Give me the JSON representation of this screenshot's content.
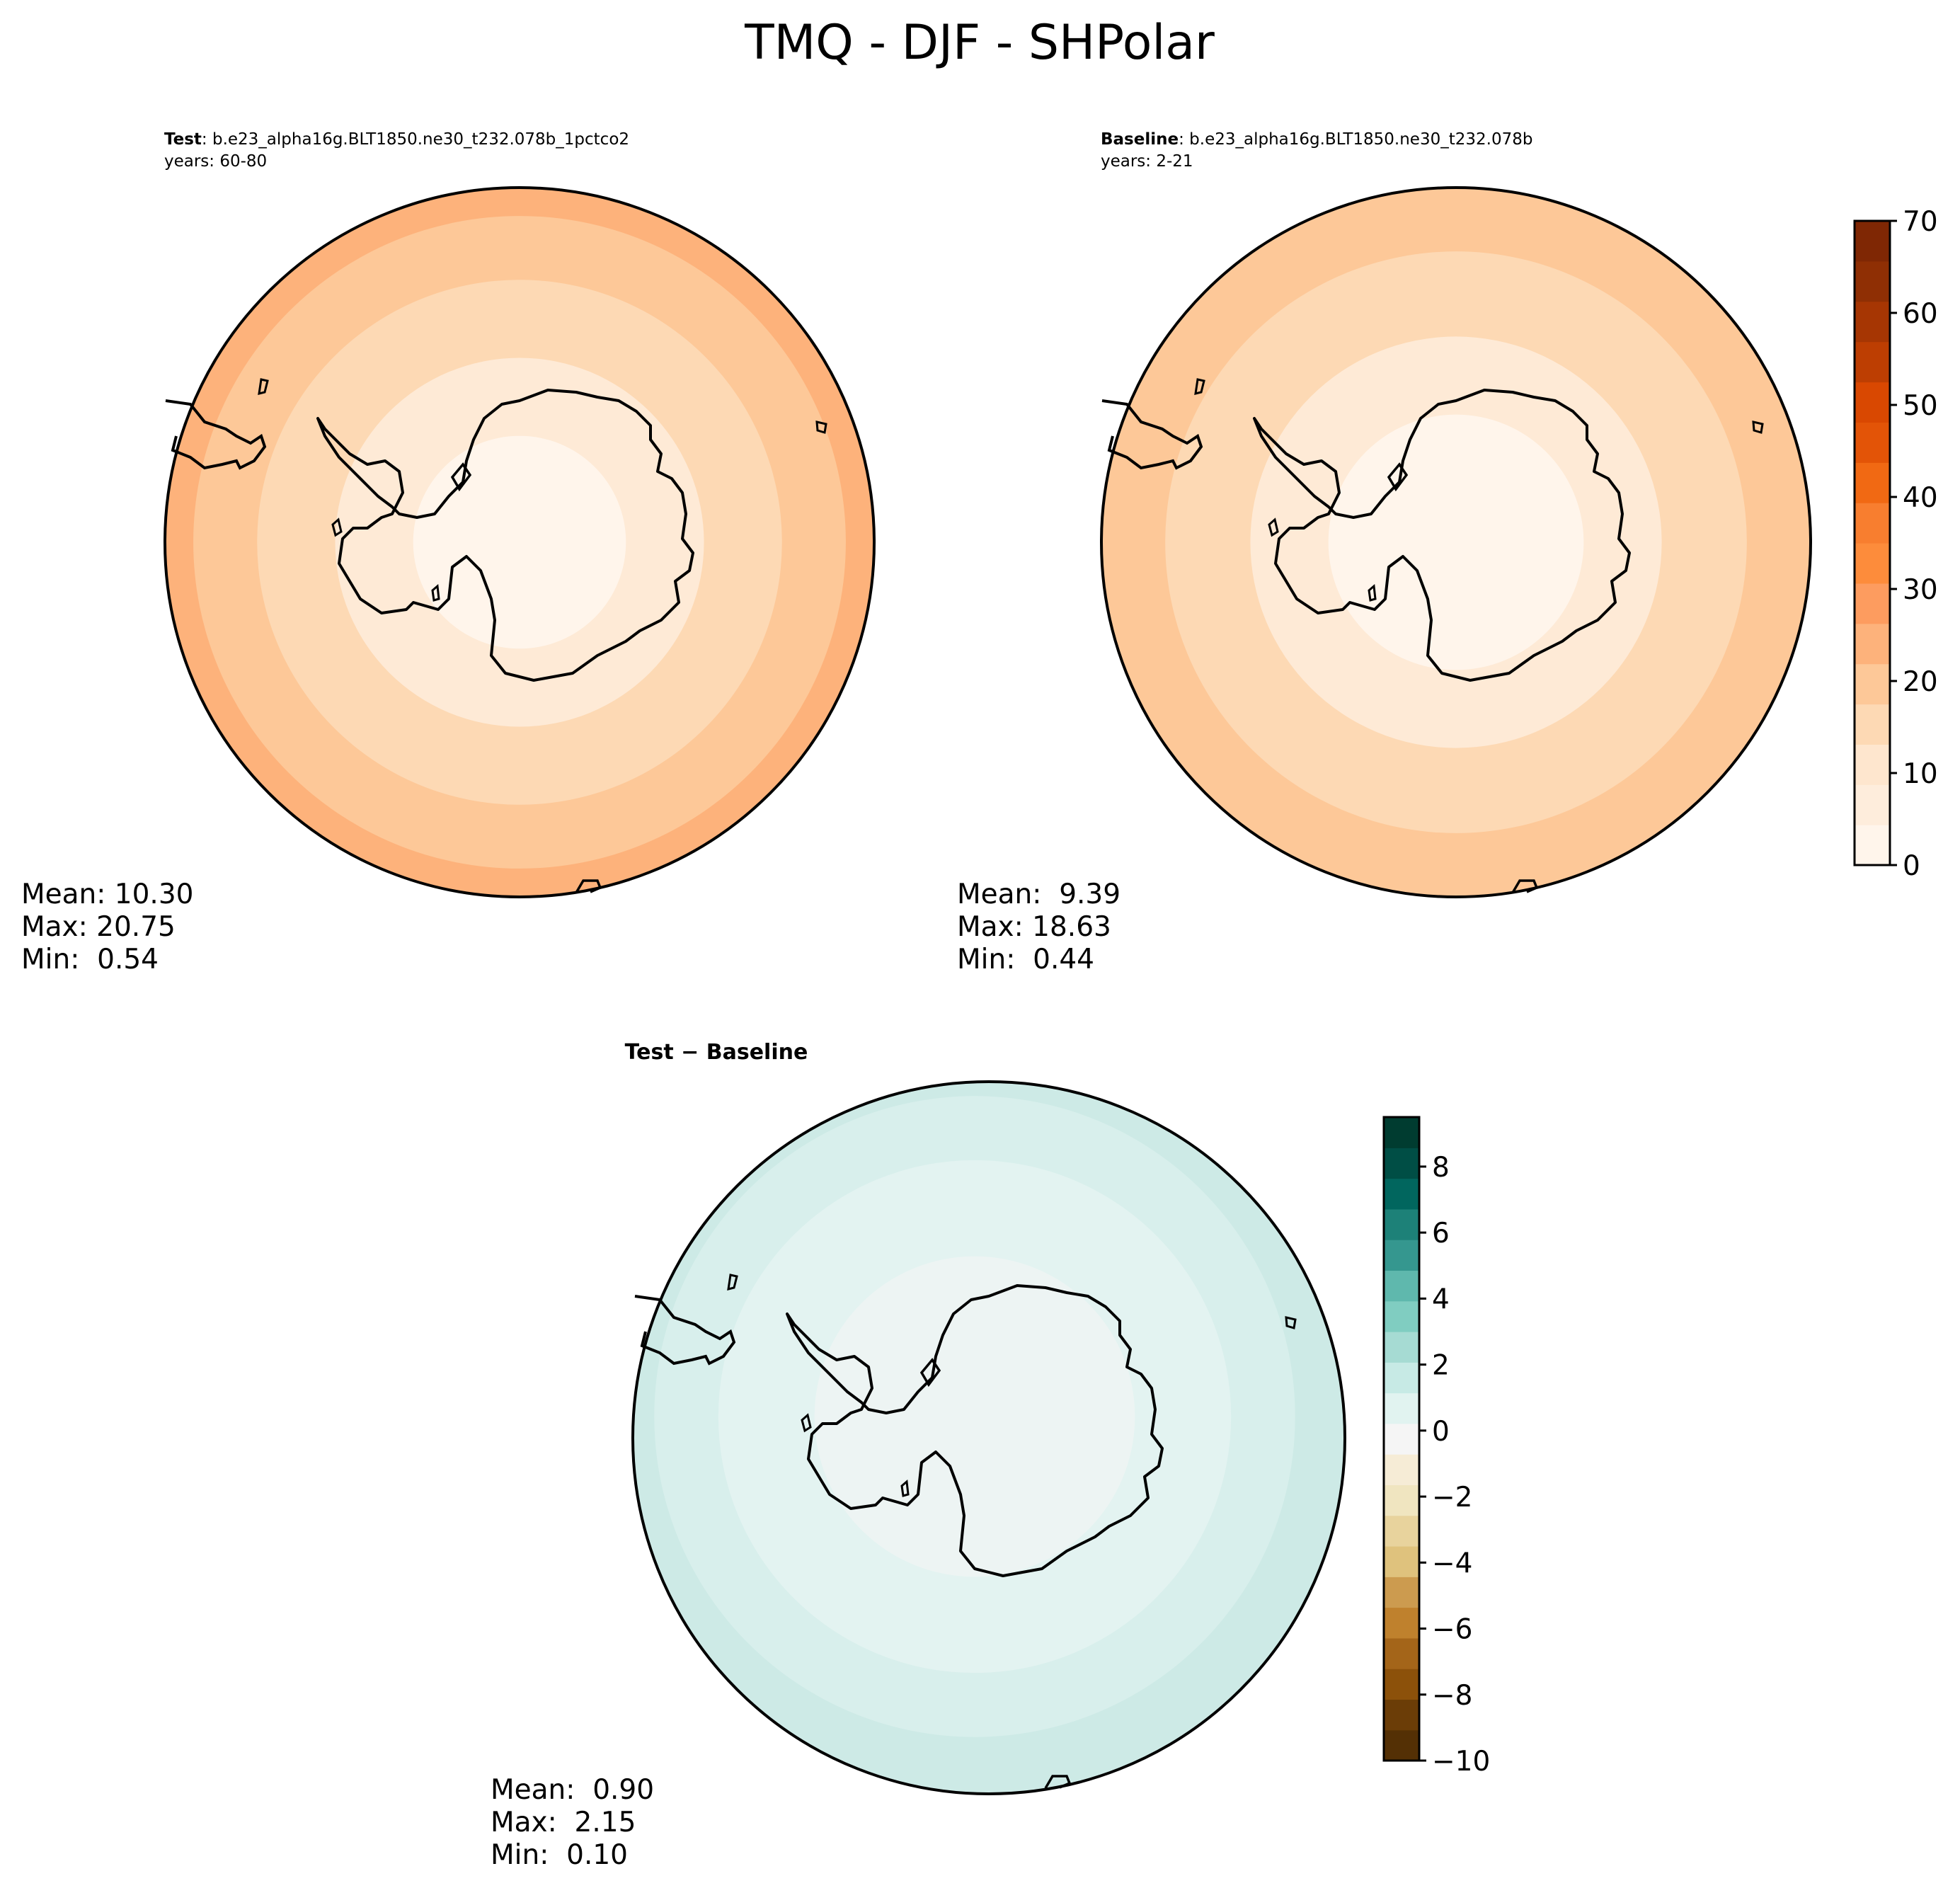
{
  "figure": {
    "title": "TMQ - DJF - SHPolar"
  },
  "chart_data": [
    {
      "type": "heatmap",
      "projection": "south-polar-stereographic",
      "panel": "test",
      "header_bold": "Test",
      "header_rest": ": b.e23_alpha16g.BLT1850.ne30_t232.078b_1pctco2",
      "years": "years: 60-80",
      "stats": {
        "mean_label": "Mean: 10.30",
        "max_label": "Max: 20.75",
        "min_label": "Min:  0.54",
        "mean": 10.3,
        "max": 20.75,
        "min": 0.54
      },
      "rings": [
        {
          "level": 17.5,
          "color": "#fdb27b"
        },
        {
          "level": 12.5,
          "color": "#fdc898"
        },
        {
          "level": 7.5,
          "color": "#fdd9b4"
        },
        {
          "level": 2.5,
          "color": "#feead6"
        },
        {
          "level": 0.5,
          "color": "#fff5eb"
        }
      ]
    },
    {
      "type": "heatmap",
      "projection": "south-polar-stereographic",
      "panel": "baseline",
      "header_bold": "Baseline",
      "header_rest": ": b.e23_alpha16g.BLT1850.ne30_t232.078b",
      "years": "years: 2-21",
      "stats": {
        "mean_label": "Mean:  9.39",
        "max_label": "Max: 18.63",
        "min_label": "Min:  0.44",
        "mean": 9.39,
        "max": 18.63,
        "min": 0.44
      },
      "rings": [
        {
          "level": 12.5,
          "color": "#fdc898"
        },
        {
          "level": 7.5,
          "color": "#fdd9b4"
        },
        {
          "level": 2.5,
          "color": "#feead6"
        },
        {
          "level": 0.5,
          "color": "#fff5eb"
        }
      ],
      "colorbar": {
        "ticks": [
          "0",
          "10",
          "20",
          "30",
          "40",
          "50",
          "60",
          "70"
        ],
        "range": [
          0,
          70
        ],
        "colors": [
          "#fff5eb",
          "#feeddc",
          "#fee6ce",
          "#fdd9b4",
          "#fdc898",
          "#fdb27b",
          "#fd9c5f",
          "#fd8c3b",
          "#f87e2f",
          "#f16913",
          "#e35407",
          "#d94801",
          "#bd3e02",
          "#a63603",
          "#8f2f04",
          "#7f2704"
        ]
      }
    },
    {
      "type": "heatmap",
      "projection": "south-polar-stereographic",
      "panel": "difference",
      "header_bold": "Test − Baseline",
      "stats": {
        "mean_label": "Mean:  0.90",
        "max_label": "Max:  2.15",
        "min_label": "Min:  0.10",
        "mean": 0.9,
        "max": 2.15,
        "min": 0.1
      },
      "rings": [
        {
          "level": 1.5,
          "color": "#cdeae6"
        },
        {
          "level": 1.0,
          "color": "#d8efec"
        },
        {
          "level": 0.5,
          "color": "#e3f3f1"
        },
        {
          "level": 0.2,
          "color": "#edf4f3"
        }
      ],
      "colorbar": {
        "ticks": [
          "8",
          "6",
          "4",
          "2",
          "0",
          "−2",
          "−4",
          "−6",
          "−8",
          "−10"
        ],
        "tick_values": [
          8,
          6,
          4,
          2,
          0,
          -2,
          -4,
          -6,
          -8,
          -10
        ],
        "range": [
          -10,
          9.5
        ],
        "colors": [
          "#543005",
          "#6b3d07",
          "#8c510a",
          "#a46519",
          "#bf812d",
          "#cc9b4f",
          "#dfc27d",
          "#e8d39d",
          "#f0e5c0",
          "#f6ecd6",
          "#f5f5f5",
          "#e1f3f0",
          "#c7eae5",
          "#a6dbd3",
          "#80cdc1",
          "#5fb8ad",
          "#35978f",
          "#1d8178",
          "#01665e",
          "#004e45",
          "#003c30"
        ]
      }
    }
  ]
}
